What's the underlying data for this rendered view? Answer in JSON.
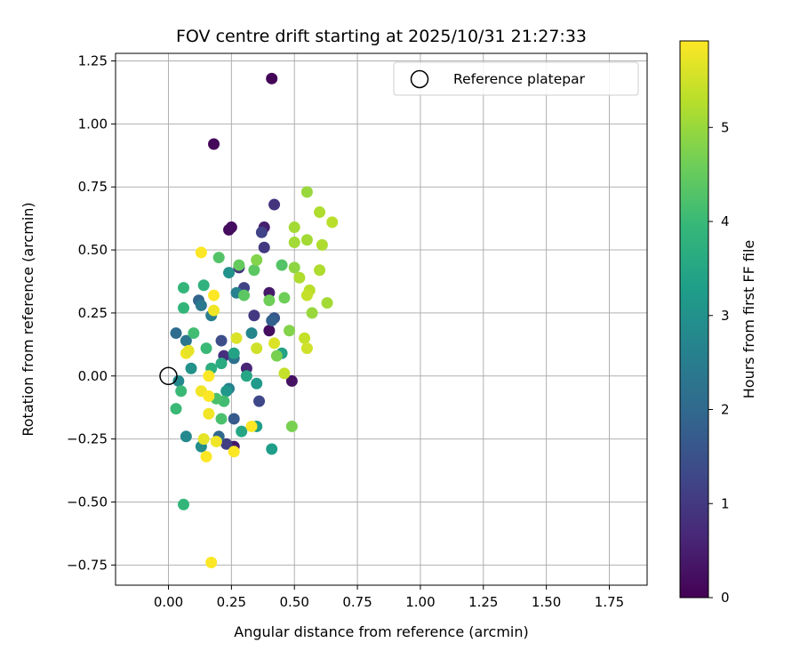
{
  "chart_data": {
    "type": "scatter",
    "title": "FOV centre drift starting at 2025/10/31 21:27:33",
    "xlabel": "Angular distance from reference (arcmin)",
    "ylabel": "Rotation from reference (arcmin)",
    "xlim": [
      -0.21,
      1.9
    ],
    "ylim": [
      -0.83,
      1.28
    ],
    "grid": true,
    "xticks": [
      0.0,
      0.25,
      0.5,
      0.75,
      1.0,
      1.25,
      1.5,
      1.75
    ],
    "xtick_labels": [
      "0.00",
      "0.25",
      "0.50",
      "0.75",
      "1.00",
      "1.25",
      "1.50",
      "1.75"
    ],
    "yticks": [
      -0.75,
      -0.5,
      -0.25,
      0.0,
      0.25,
      0.5,
      0.75,
      1.0,
      1.25
    ],
    "ytick_labels": [
      "−0.75",
      "−0.50",
      "−0.25",
      "0.00",
      "0.25",
      "0.50",
      "0.75",
      "1.00",
      "1.25"
    ],
    "legend": {
      "position": "top-right",
      "entries": [
        {
          "label": "Reference platepar",
          "marker": "open-circle"
        }
      ]
    },
    "reference_point": {
      "x": 0.0,
      "y": 0.0
    },
    "colorbar": {
      "label": "Hours from first FF file",
      "min": 0,
      "max": 5.92,
      "ticks": [
        0,
        1,
        2,
        3,
        4,
        5
      ],
      "tick_labels": [
        "0",
        "1",
        "2",
        "3",
        "4",
        "5"
      ],
      "colormap": "viridis",
      "stops": [
        "#440154",
        "#482878",
        "#3e4989",
        "#31688e",
        "#26828e",
        "#1f9e89",
        "#35b779",
        "#6ece58",
        "#b5de2b",
        "#fde725"
      ]
    },
    "points": [
      {
        "x": 0.41,
        "y": 1.18,
        "h": 0.05
      },
      {
        "x": 0.18,
        "y": 0.92,
        "h": 0.1
      },
      {
        "x": 0.24,
        "y": 0.58,
        "h": 0.15
      },
      {
        "x": 0.25,
        "y": 0.59,
        "h": 0.2
      },
      {
        "x": 0.38,
        "y": 0.59,
        "h": 0.5
      },
      {
        "x": 0.42,
        "y": 0.68,
        "h": 0.9
      },
      {
        "x": 0.37,
        "y": 0.57,
        "h": 1.2
      },
      {
        "x": 0.38,
        "y": 0.51,
        "h": 1.0
      },
      {
        "x": 0.49,
        "y": -0.02,
        "h": 0.3
      },
      {
        "x": 0.4,
        "y": 0.33,
        "h": 0.4
      },
      {
        "x": 0.4,
        "y": 0.18,
        "h": 0.2
      },
      {
        "x": 0.3,
        "y": 0.35,
        "h": 1.2
      },
      {
        "x": 0.34,
        "y": 0.24,
        "h": 1.0
      },
      {
        "x": 0.36,
        "y": -0.1,
        "h": 1.3
      },
      {
        "x": 0.31,
        "y": 0.03,
        "h": 0.6
      },
      {
        "x": 0.26,
        "y": -0.28,
        "h": 0.4
      },
      {
        "x": 0.22,
        "y": 0.08,
        "h": 0.8
      },
      {
        "x": 0.21,
        "y": 0.14,
        "h": 1.4
      },
      {
        "x": 0.42,
        "y": 0.23,
        "h": 1.6
      },
      {
        "x": 0.41,
        "y": 0.22,
        "h": 1.8
      },
      {
        "x": 0.28,
        "y": 0.43,
        "h": 0.9
      },
      {
        "x": 0.23,
        "y": -0.27,
        "h": 1.1
      },
      {
        "x": 0.26,
        "y": -0.17,
        "h": 1.7
      },
      {
        "x": 0.12,
        "y": 0.3,
        "h": 1.9
      },
      {
        "x": 0.2,
        "y": -0.24,
        "h": 2.0
      },
      {
        "x": 0.03,
        "y": 0.17,
        "h": 2.1
      },
      {
        "x": 0.07,
        "y": 0.14,
        "h": 2.3
      },
      {
        "x": 0.13,
        "y": 0.28,
        "h": 2.4
      },
      {
        "x": 0.17,
        "y": 0.24,
        "h": 2.5
      },
      {
        "x": 0.24,
        "y": -0.05,
        "h": 2.6
      },
      {
        "x": 0.26,
        "y": 0.07,
        "h": 2.2
      },
      {
        "x": 0.27,
        "y": 0.33,
        "h": 2.6
      },
      {
        "x": 0.33,
        "y": 0.17,
        "h": 2.7
      },
      {
        "x": 0.04,
        "y": -0.02,
        "h": 2.8
      },
      {
        "x": 0.07,
        "y": -0.24,
        "h": 2.8
      },
      {
        "x": 0.09,
        "y": 0.03,
        "h": 3.0
      },
      {
        "x": 0.13,
        "y": -0.28,
        "h": 2.9
      },
      {
        "x": 0.24,
        "y": 0.41,
        "h": 3.0
      },
      {
        "x": 0.23,
        "y": -0.06,
        "h": 3.1
      },
      {
        "x": 0.35,
        "y": -0.03,
        "h": 3.2
      },
      {
        "x": 0.35,
        "y": -0.2,
        "h": 3.3
      },
      {
        "x": 0.41,
        "y": -0.29,
        "h": 3.3
      },
      {
        "x": 0.45,
        "y": 0.09,
        "h": 3.4
      },
      {
        "x": 0.31,
        "y": 0.0,
        "h": 3.5
      },
      {
        "x": 0.26,
        "y": 0.09,
        "h": 3.4
      },
      {
        "x": 0.29,
        "y": -0.22,
        "h": 3.5
      },
      {
        "x": 0.21,
        "y": 0.05,
        "h": 3.6
      },
      {
        "x": 0.17,
        "y": 0.03,
        "h": 3.7
      },
      {
        "x": 0.14,
        "y": 0.36,
        "h": 3.8
      },
      {
        "x": 0.06,
        "y": 0.27,
        "h": 3.9
      },
      {
        "x": 0.06,
        "y": 0.35,
        "h": 3.9
      },
      {
        "x": 0.03,
        "y": -0.13,
        "h": 4.0
      },
      {
        "x": 0.05,
        "y": -0.06,
        "h": 4.0
      },
      {
        "x": 0.06,
        "y": -0.51,
        "h": 3.9
      },
      {
        "x": 0.1,
        "y": 0.17,
        "h": 4.1
      },
      {
        "x": 0.15,
        "y": 0.11,
        "h": 4.0
      },
      {
        "x": 0.22,
        "y": -0.1,
        "h": 4.1
      },
      {
        "x": 0.21,
        "y": -0.17,
        "h": 4.2
      },
      {
        "x": 0.2,
        "y": 0.47,
        "h": 4.3
      },
      {
        "x": 0.19,
        "y": -0.09,
        "h": 4.2
      },
      {
        "x": 0.3,
        "y": 0.32,
        "h": 4.4
      },
      {
        "x": 0.34,
        "y": 0.42,
        "h": 4.4
      },
      {
        "x": 0.28,
        "y": 0.44,
        "h": 4.5
      },
      {
        "x": 0.45,
        "y": 0.44,
        "h": 4.3
      },
      {
        "x": 0.4,
        "y": 0.3,
        "h": 4.6
      },
      {
        "x": 0.46,
        "y": 0.31,
        "h": 4.6
      },
      {
        "x": 0.49,
        "y": -0.2,
        "h": 4.7
      },
      {
        "x": 0.48,
        "y": 0.18,
        "h": 4.8
      },
      {
        "x": 0.43,
        "y": 0.08,
        "h": 4.7
      },
      {
        "x": 0.35,
        "y": 0.46,
        "h": 4.8
      },
      {
        "x": 0.5,
        "y": 0.43,
        "h": 4.9
      },
      {
        "x": 0.55,
        "y": 0.73,
        "h": 5.0
      },
      {
        "x": 0.5,
        "y": 0.59,
        "h": 5.1
      },
      {
        "x": 0.5,
        "y": 0.53,
        "h": 5.1
      },
      {
        "x": 0.52,
        "y": 0.39,
        "h": 5.2
      },
      {
        "x": 0.55,
        "y": 0.54,
        "h": 5.1
      },
      {
        "x": 0.6,
        "y": 0.65,
        "h": 5.2
      },
      {
        "x": 0.65,
        "y": 0.61,
        "h": 5.3
      },
      {
        "x": 0.61,
        "y": 0.52,
        "h": 5.2
      },
      {
        "x": 0.56,
        "y": 0.34,
        "h": 5.3
      },
      {
        "x": 0.55,
        "y": 0.32,
        "h": 5.4
      },
      {
        "x": 0.6,
        "y": 0.42,
        "h": 5.2
      },
      {
        "x": 0.63,
        "y": 0.29,
        "h": 5.1
      },
      {
        "x": 0.57,
        "y": 0.25,
        "h": 5.0
      },
      {
        "x": 0.54,
        "y": 0.15,
        "h": 5.4
      },
      {
        "x": 0.55,
        "y": 0.11,
        "h": 5.5
      },
      {
        "x": 0.46,
        "y": 0.01,
        "h": 5.4
      },
      {
        "x": 0.42,
        "y": 0.13,
        "h": 5.6
      },
      {
        "x": 0.35,
        "y": 0.11,
        "h": 5.5
      },
      {
        "x": 0.27,
        "y": 0.15,
        "h": 5.6
      },
      {
        "x": 0.13,
        "y": 0.49,
        "h": 5.9
      },
      {
        "x": 0.18,
        "y": 0.32,
        "h": 5.9
      },
      {
        "x": 0.18,
        "y": 0.26,
        "h": 5.8
      },
      {
        "x": 0.07,
        "y": 0.09,
        "h": 5.8
      },
      {
        "x": 0.08,
        "y": 0.1,
        "h": 5.7
      },
      {
        "x": 0.13,
        "y": -0.06,
        "h": 5.8
      },
      {
        "x": 0.16,
        "y": -0.08,
        "h": 5.9
      },
      {
        "x": 0.16,
        "y": 0.0,
        "h": 5.9
      },
      {
        "x": 0.16,
        "y": -0.15,
        "h": 5.8
      },
      {
        "x": 0.14,
        "y": -0.25,
        "h": 5.7
      },
      {
        "x": 0.19,
        "y": -0.26,
        "h": 5.8
      },
      {
        "x": 0.26,
        "y": -0.3,
        "h": 5.9
      },
      {
        "x": 0.15,
        "y": -0.32,
        "h": 5.9
      },
      {
        "x": 0.33,
        "y": -0.2,
        "h": 5.9
      },
      {
        "x": 0.17,
        "y": -0.74,
        "h": 5.9
      }
    ]
  }
}
